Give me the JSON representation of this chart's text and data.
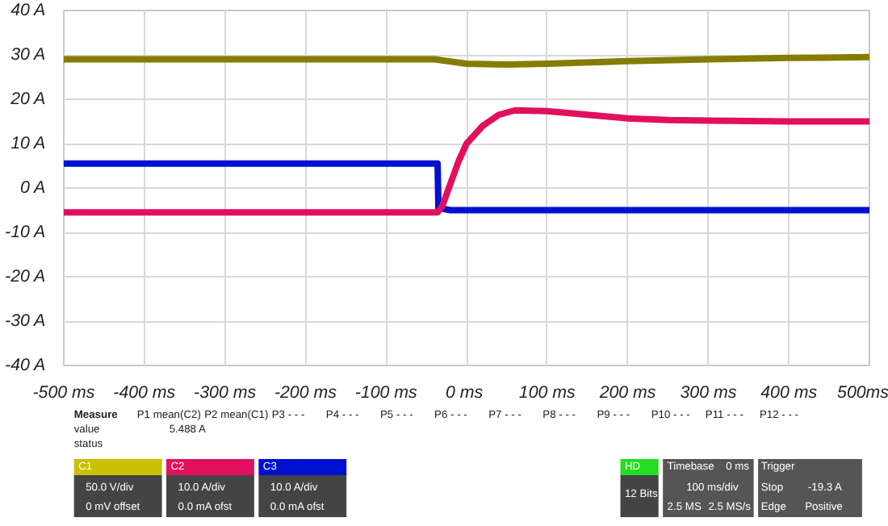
{
  "chart_data": {
    "type": "line",
    "xlim": [
      -500,
      500
    ],
    "xticks": [
      {
        "value": -500,
        "label": "-500 ms"
      },
      {
        "value": -400,
        "label": "-400 ms"
      },
      {
        "value": -300,
        "label": "-300 ms"
      },
      {
        "value": -200,
        "label": "-200 ms"
      },
      {
        "value": -100,
        "label": "-100 ms"
      },
      {
        "value": 0,
        "label": "0  ms"
      },
      {
        "value": 100,
        "label": "100 ms"
      },
      {
        "value": 200,
        "label": "200 ms"
      },
      {
        "value": 300,
        "label": "300 ms"
      },
      {
        "value": 400,
        "label": "400 ms"
      },
      {
        "value": 500,
        "label": "500ms"
      }
    ],
    "ylim": [
      -40,
      40
    ],
    "yticks": [
      {
        "value": -40,
        "label": "-40 A"
      },
      {
        "value": -30,
        "label": "-30 A"
      },
      {
        "value": -20,
        "label": "-20 A"
      },
      {
        "value": -10,
        "label": "-10 A"
      },
      {
        "value": 0,
        "label": "0 A"
      },
      {
        "value": 10,
        "label": "10 A"
      },
      {
        "value": 20,
        "label": "20 A"
      },
      {
        "value": 30,
        "label": "30 A"
      },
      {
        "value": 40,
        "label": "40 A"
      }
    ],
    "grid": true,
    "series": [
      {
        "color": "#857c00",
        "x": [
          -500,
          -100,
          -40,
          -20,
          0,
          50,
          100,
          200,
          300,
          400,
          500
        ],
        "values": [
          29,
          29,
          29,
          28.5,
          28,
          27.8,
          28,
          28.6,
          29,
          29.3,
          29.5
        ]
      },
      {
        "color": "#0010d0",
        "x": [
          -500,
          -36,
          -35,
          -20,
          500
        ],
        "values": [
          5.5,
          5.5,
          -4.5,
          -5,
          -5
        ]
      },
      {
        "color": "#e0105e",
        "x": [
          -500,
          -36,
          -30,
          -20,
          -10,
          0,
          20,
          40,
          60,
          100,
          150,
          200,
          250,
          300,
          400,
          500
        ],
        "values": [
          -5.5,
          -5.5,
          -4,
          1,
          6,
          10,
          14,
          16.5,
          17.5,
          17.3,
          16.5,
          15.7,
          15.3,
          15.2,
          15,
          15
        ]
      }
    ],
    "annotations": [
      "Measure",
      "P1 mean(C2)",
      "P2 mean(C1)",
      "P3 - - -",
      "P4 - - -",
      "P5 - - -",
      "P6 - - -",
      "P7 - - -",
      "P8 - - -",
      "P9 - - -",
      "P10 - - -",
      "P11 - - -",
      "P12 - - -",
      "value",
      "5.488 A",
      "status",
      "C1",
      "50.0 V/div",
      "0 mV offset",
      "C2",
      "10.0 A/div",
      "0.0 mA ofst",
      "C3",
      "10.0 A/div",
      "0.0 mA ofst",
      "HD",
      "12 Bits",
      "Timebase",
      "0 ms",
      "100 ms/div",
      "2.5 MS",
      "2.5 MS/s",
      "Trigger",
      "Stop",
      "-19.3 A",
      "Edge",
      "Positive"
    ]
  }
}
